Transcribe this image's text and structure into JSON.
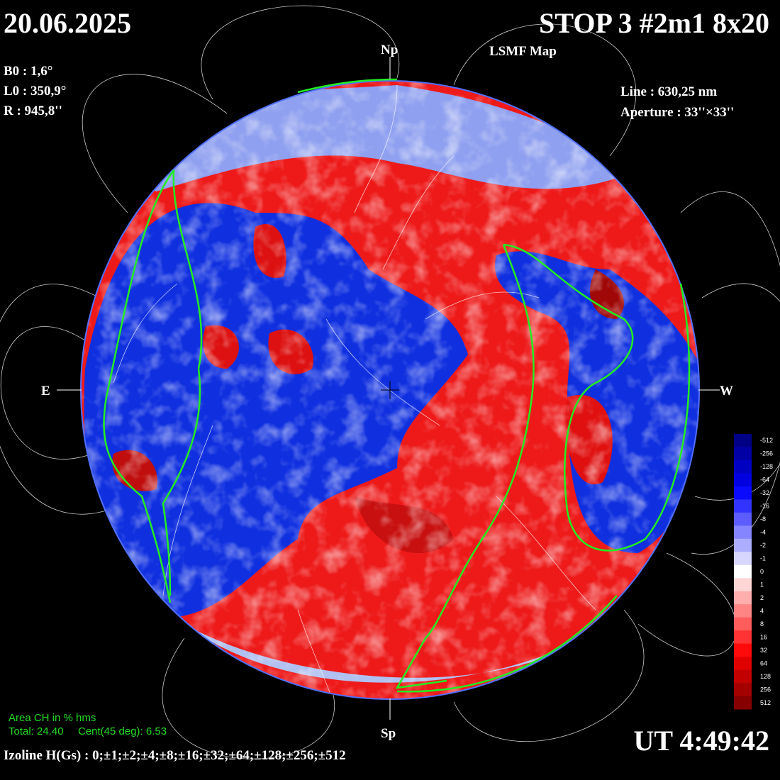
{
  "header": {
    "date": "20.06.2025",
    "title": "STOP 3 #2m1 8x20",
    "subtitle": "LSMF  Map"
  },
  "params": {
    "b0": "B0 : 1,6°",
    "l0": "L0 : 350,9°",
    "r": "R  : 945,8''",
    "line": "Line :  630,25 nm",
    "aperture": "Aperture : 33''×33''"
  },
  "directions": {
    "north": "Np",
    "south": "Sp",
    "east": "E",
    "west": "W"
  },
  "coronal_hole": {
    "heading": "Area CH in % hms",
    "total": "Total: 24.40",
    "central": "Cent(45 deg): 6.53"
  },
  "isolines": "Izoline H(Gs) : 0;±1;±2;±4;±8;±16;±32;±64;±128;±256;±512",
  "time": "UT 4:49:42",
  "colorbar": {
    "labels": [
      -512,
      -256,
      -128,
      -64,
      -32,
      -16,
      -8,
      -4,
      -2,
      -1,
      0,
      1,
      2,
      4,
      8,
      16,
      32,
      64,
      128,
      256,
      512
    ]
  }
}
